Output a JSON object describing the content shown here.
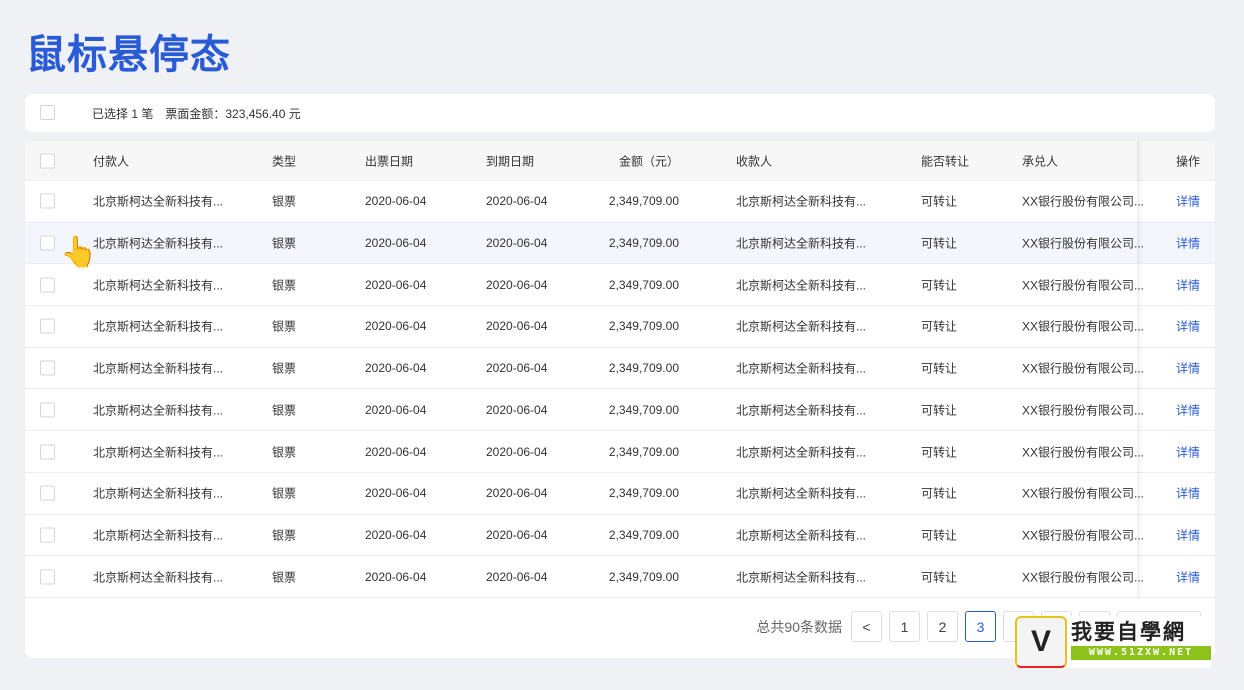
{
  "title": "鼠标悬停态",
  "selection_bar": {
    "text": "已选择 1 笔　票面金额：323,456.40 元"
  },
  "table": {
    "headers": [
      "付款人",
      "类型",
      "出票日期",
      "到期日期",
      "金额（元）",
      "收款人",
      "能否转让",
      "承兑人",
      "操作"
    ],
    "rows": [
      {
        "payer": "北京斯柯达全新科技有...",
        "type": "银票",
        "issue": "2020-06-04",
        "due": "2020-06-04",
        "amount": "2,349,709.00",
        "payee": "北京斯柯达全新科技有...",
        "transfer": "可转让",
        "acceptor": "XX银行股份有限公司...",
        "action": "详情"
      },
      {
        "payer": "北京斯柯达全新科技有...",
        "type": "银票",
        "issue": "2020-06-04",
        "due": "2020-06-04",
        "amount": "2,349,709.00",
        "payee": "北京斯柯达全新科技有...",
        "transfer": "可转让",
        "acceptor": "XX银行股份有限公司...",
        "action": "详情"
      },
      {
        "payer": "北京斯柯达全新科技有...",
        "type": "银票",
        "issue": "2020-06-04",
        "due": "2020-06-04",
        "amount": "2,349,709.00",
        "payee": "北京斯柯达全新科技有...",
        "transfer": "可转让",
        "acceptor": "XX银行股份有限公司...",
        "action": "详情"
      },
      {
        "payer": "北京斯柯达全新科技有...",
        "type": "银票",
        "issue": "2020-06-04",
        "due": "2020-06-04",
        "amount": "2,349,709.00",
        "payee": "北京斯柯达全新科技有...",
        "transfer": "可转让",
        "acceptor": "XX银行股份有限公司...",
        "action": "详情"
      },
      {
        "payer": "北京斯柯达全新科技有...",
        "type": "银票",
        "issue": "2020-06-04",
        "due": "2020-06-04",
        "amount": "2,349,709.00",
        "payee": "北京斯柯达全新科技有...",
        "transfer": "可转让",
        "acceptor": "XX银行股份有限公司...",
        "action": "详情"
      },
      {
        "payer": "北京斯柯达全新科技有...",
        "type": "银票",
        "issue": "2020-06-04",
        "due": "2020-06-04",
        "amount": "2,349,709.00",
        "payee": "北京斯柯达全新科技有...",
        "transfer": "可转让",
        "acceptor": "XX银行股份有限公司...",
        "action": "详情"
      },
      {
        "payer": "北京斯柯达全新科技有...",
        "type": "银票",
        "issue": "2020-06-04",
        "due": "2020-06-04",
        "amount": "2,349,709.00",
        "payee": "北京斯柯达全新科技有...",
        "transfer": "可转让",
        "acceptor": "XX银行股份有限公司...",
        "action": "详情"
      },
      {
        "payer": "北京斯柯达全新科技有...",
        "type": "银票",
        "issue": "2020-06-04",
        "due": "2020-06-04",
        "amount": "2,349,709.00",
        "payee": "北京斯柯达全新科技有...",
        "transfer": "可转让",
        "acceptor": "XX银行股份有限公司...",
        "action": "详情"
      },
      {
        "payer": "北京斯柯达全新科技有...",
        "type": "银票",
        "issue": "2020-06-04",
        "due": "2020-06-04",
        "amount": "2,349,709.00",
        "payee": "北京斯柯达全新科技有...",
        "transfer": "可转让",
        "acceptor": "XX银行股份有限公司...",
        "action": "详情"
      },
      {
        "payer": "北京斯柯达全新科技有...",
        "type": "银票",
        "issue": "2020-06-04",
        "due": "2020-06-04",
        "amount": "2,349,709.00",
        "payee": "北京斯柯达全新科技有...",
        "transfer": "可转让",
        "acceptor": "XX银行股份有限公司...",
        "action": "详情"
      }
    ],
    "hovered_row": 1
  },
  "pagination": {
    "total": "总共90条数据",
    "prev": "<",
    "pages": [
      "1",
      "2",
      "3"
    ],
    "current": "3"
  },
  "watermark": {
    "text": "我要自學網",
    "url": "WWW.51ZXW.NET"
  },
  "colors": {
    "accent": "#2a5bd7",
    "background": "#f0f1f5"
  }
}
